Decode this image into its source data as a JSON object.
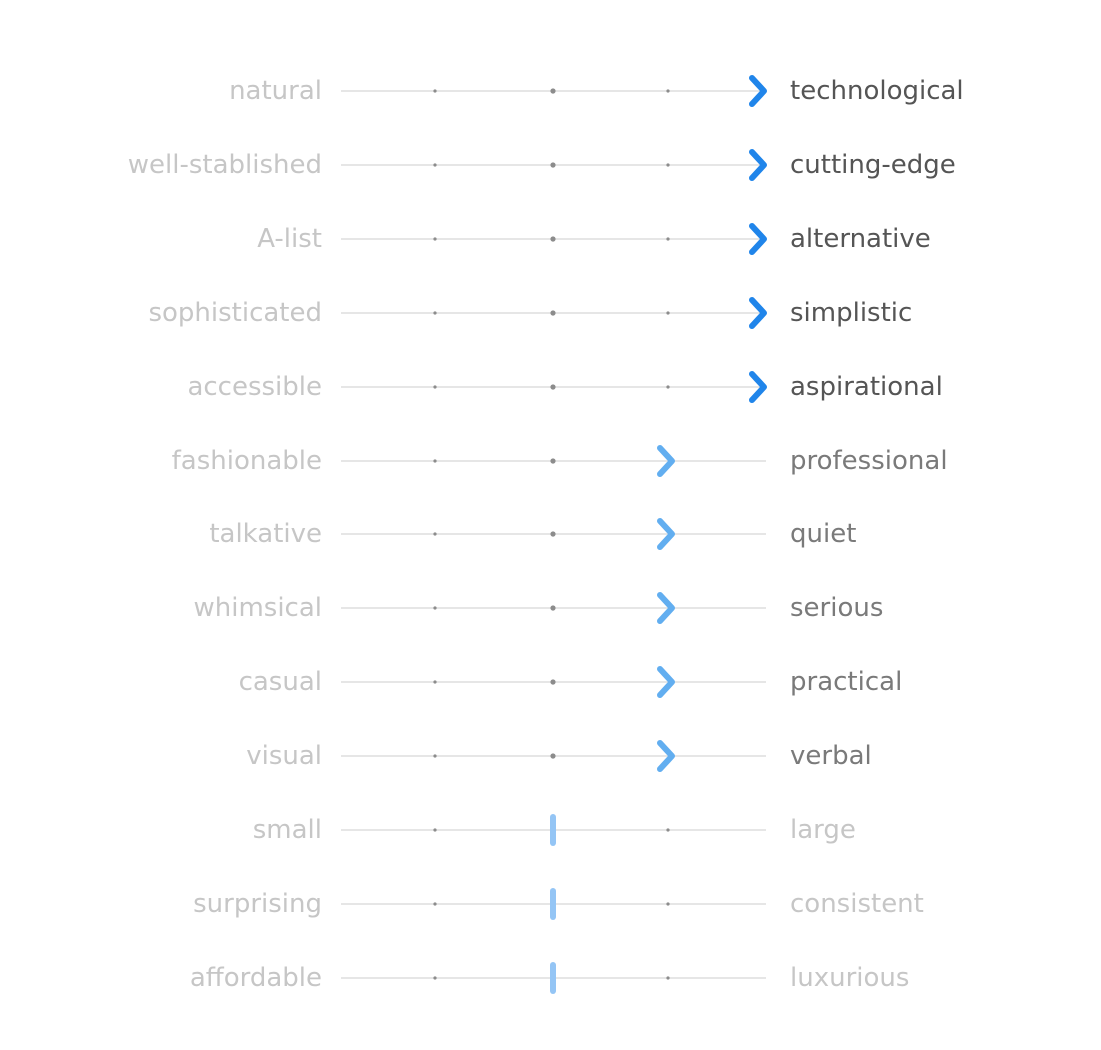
{
  "scales": [
    {
      "left": "natural",
      "right": "technological",
      "level": 3
    },
    {
      "left": "well-stablished",
      "right": "cutting-edge",
      "level": 3
    },
    {
      "left": "A-list",
      "right": "alternative",
      "level": 3
    },
    {
      "left": "sophisticated",
      "right": "simplistic",
      "level": 3
    },
    {
      "left": "accessible",
      "right": "aspirational",
      "level": 3
    },
    {
      "left": "fashionable",
      "right": "professional",
      "level": 2
    },
    {
      "left": "talkative",
      "right": "quiet",
      "level": 2
    },
    {
      "left": "whimsical",
      "right": "serious",
      "level": 2
    },
    {
      "left": "casual",
      "right": "practical",
      "level": 2
    },
    {
      "left": "visual",
      "right": "verbal",
      "level": 2
    },
    {
      "left": "small",
      "right": "large",
      "level": 1
    },
    {
      "left": "surprising",
      "right": "consistent",
      "level": 1
    },
    {
      "left": "affordable",
      "right": "luxurious",
      "level": 1
    }
  ],
  "colors": {
    "track": "#e6e6e6",
    "tick": "#8c8c8c",
    "strong_marker": "#2085ea",
    "medium_marker": "#62aef0",
    "neutral_marker": "#94c5f5"
  },
  "marker_icons": {
    "strong": "chevron-right-icon",
    "medium": "chevron-right-icon",
    "neutral": "neutral-bar-icon"
  }
}
